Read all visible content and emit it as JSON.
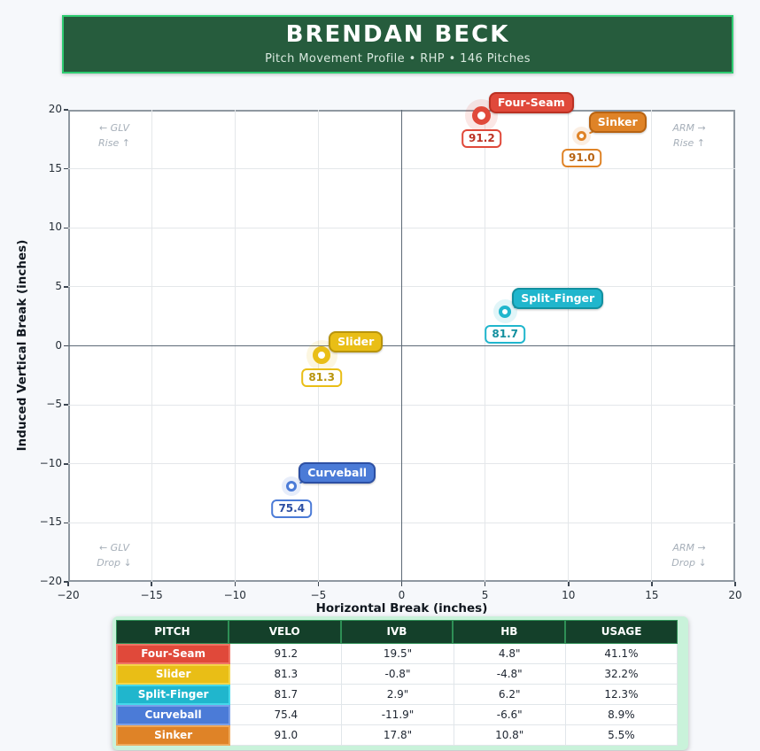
{
  "header": {
    "title": "BRENDAN BECK",
    "subtitle": "Pitch Movement Profile  •  RHP  •  146 Pitches"
  },
  "chart_data": {
    "type": "scatter",
    "xlabel": "Horizontal Break (inches)",
    "ylabel": "Induced Vertical Break (inches)",
    "xlim": [
      -20,
      20
    ],
    "ylim": [
      -20,
      20
    ],
    "xticks": [
      -20,
      -15,
      -10,
      -5,
      0,
      5,
      10,
      15,
      20
    ],
    "yticks": [
      -20,
      -15,
      -10,
      -5,
      0,
      5,
      10,
      15,
      20
    ],
    "grid": true,
    "quadrants": [
      {
        "pos": "tl",
        "text": "← GLV\nRise ↑"
      },
      {
        "pos": "tr",
        "text": "ARM →\nRise ↑"
      },
      {
        "pos": "bl",
        "text": "← GLV\nDrop ↓"
      },
      {
        "pos": "br",
        "text": "ARM →\nDrop ↓"
      }
    ],
    "series": [
      {
        "name": "Four-Seam",
        "x": 4.8,
        "y": 19.5,
        "velo": "91.2",
        "usage": 41.1,
        "color": "#e0493a",
        "dark": "#bb3123",
        "ring": 21,
        "ring_w": 6,
        "halo": 37
      },
      {
        "name": "Slider",
        "x": -4.8,
        "y": -0.8,
        "velo": "81.3",
        "usage": 32.2,
        "color": "#e9be16",
        "dark": "#b8940c",
        "ring": 20,
        "ring_w": 6,
        "halo": 35
      },
      {
        "name": "Split-Finger",
        "x": 6.2,
        "y": 2.9,
        "velo": "81.7",
        "usage": 12.3,
        "color": "#20b6cd",
        "dark": "#13909f",
        "ring": 14,
        "ring_w": 4,
        "halo": 27
      },
      {
        "name": "Curveball",
        "x": -6.6,
        "y": -11.9,
        "velo": "75.4",
        "usage": 8.9,
        "color": "#4b7bd7",
        "dark": "#2c4fa3",
        "ring": 12,
        "ring_w": 3.5,
        "halo": 22
      },
      {
        "name": "Sinker",
        "x": 10.8,
        "y": 17.8,
        "velo": "91.0",
        "usage": 5.5,
        "color": "#df8327",
        "dark": "#b76312",
        "ring": 11,
        "ring_w": 3.5,
        "halo": 21
      }
    ]
  },
  "table": {
    "columns": [
      "PITCH",
      "VELO",
      "IVB",
      "HB",
      "USAGE"
    ],
    "rows": [
      {
        "pitch": "Four-Seam",
        "velo": "91.2",
        "ivb": "19.5\"",
        "hb": "4.8\"",
        "usage": "41.1%",
        "color": "#e0493a",
        "border": "#ef7465"
      },
      {
        "pitch": "Slider",
        "velo": "81.3",
        "ivb": "-0.8\"",
        "hb": "-4.8\"",
        "usage": "32.2%",
        "color": "#e9be16",
        "border": "#f4d54a"
      },
      {
        "pitch": "Split-Finger",
        "velo": "81.7",
        "ivb": "2.9\"",
        "hb": "6.2\"",
        "usage": "12.3%",
        "color": "#20b6cd",
        "border": "#45d8ea"
      },
      {
        "pitch": "Curveball",
        "velo": "75.4",
        "ivb": "-11.9\"",
        "hb": "-6.6\"",
        "usage": "8.9%",
        "color": "#4b7bd7",
        "border": "#7aa0e8"
      },
      {
        "pitch": "Sinker",
        "velo": "91.0",
        "ivb": "17.8\"",
        "hb": "10.8\"",
        "usage": "5.5%",
        "color": "#df8327",
        "border": "#efa95b"
      }
    ]
  }
}
